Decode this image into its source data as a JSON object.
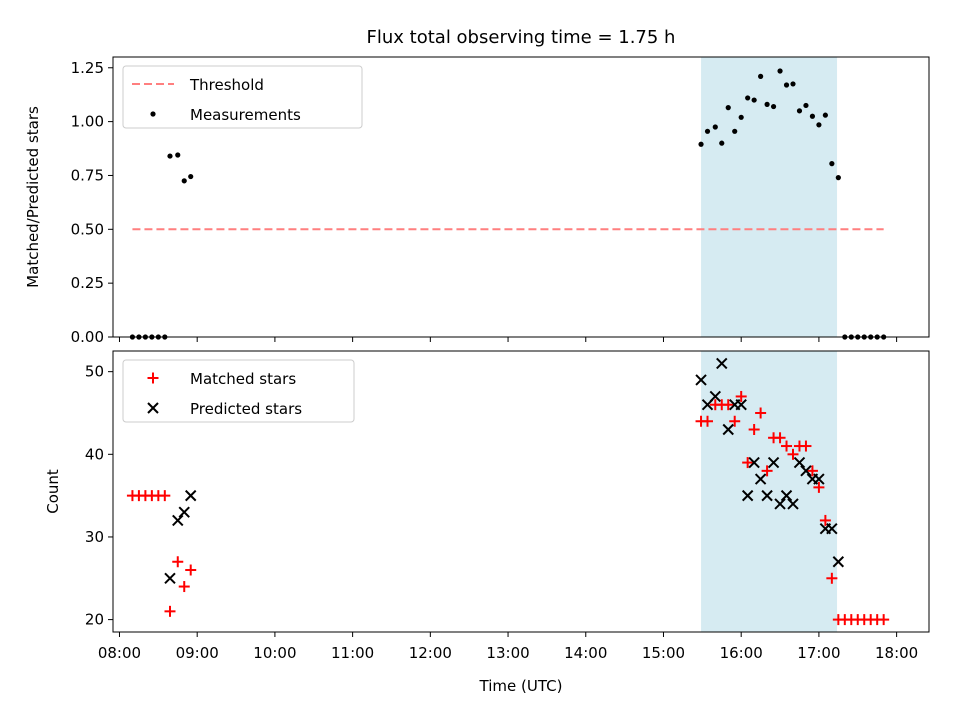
{
  "title": "Flux total observing time = 1.75 h",
  "colors": {
    "threshold": "#ff7f7f",
    "measurement": "#000000",
    "matched": "#ff0000",
    "predicted": "#000000",
    "span": "#add8e6"
  },
  "chart_data": [
    {
      "type": "scatter",
      "ylabel": "Matched/Predicted stars",
      "xlabel": "",
      "ylim": [
        0,
        1.3
      ],
      "yticks": [
        0.0,
        0.25,
        0.5,
        0.75,
        1.0,
        1.25
      ],
      "ytick_labels": [
        "0.00",
        "0.25",
        "0.50",
        "0.75",
        "1.00",
        "1.25"
      ],
      "xlim": [
        "07:55",
        "18:25"
      ],
      "highlight_span": [
        "15:29",
        "17:14"
      ],
      "legend": {
        "placement": "upper left",
        "entries": [
          "Threshold",
          "Measurements"
        ]
      },
      "threshold": {
        "name": "Threshold",
        "x": [
          "08:10",
          "17:50"
        ],
        "y": 0.5,
        "style": "dashed"
      },
      "series": [
        {
          "name": "Measurements",
          "marker": "dot",
          "points": [
            [
              "08:10",
              0.0
            ],
            [
              "08:15",
              0.0
            ],
            [
              "08:20",
              0.0
            ],
            [
              "08:25",
              0.0
            ],
            [
              "08:30",
              0.0
            ],
            [
              "08:35",
              0.0
            ],
            [
              "08:39",
              0.84
            ],
            [
              "08:45",
              0.845
            ],
            [
              "08:50",
              0.725
            ],
            [
              "08:55",
              0.745
            ],
            [
              "15:29",
              0.895
            ],
            [
              "15:34",
              0.955
            ],
            [
              "15:40",
              0.975
            ],
            [
              "15:45",
              0.9
            ],
            [
              "15:50",
              1.065
            ],
            [
              "15:55",
              0.955
            ],
            [
              "16:00",
              1.02
            ],
            [
              "16:05",
              1.11
            ],
            [
              "16:10",
              1.1
            ],
            [
              "16:15",
              1.21
            ],
            [
              "16:20",
              1.08
            ],
            [
              "16:25",
              1.07
            ],
            [
              "16:30",
              1.235
            ],
            [
              "16:35",
              1.17
            ],
            [
              "16:40",
              1.175
            ],
            [
              "16:45",
              1.05
            ],
            [
              "16:50",
              1.075
            ],
            [
              "16:55",
              1.025
            ],
            [
              "17:00",
              0.985
            ],
            [
              "17:05",
              1.03
            ],
            [
              "17:10",
              0.805
            ],
            [
              "17:15",
              0.74
            ],
            [
              "17:20",
              0.0
            ],
            [
              "17:25",
              0.0
            ],
            [
              "17:30",
              0.0
            ],
            [
              "17:35",
              0.0
            ],
            [
              "17:40",
              0.0
            ],
            [
              "17:45",
              0.0
            ],
            [
              "17:50",
              0.0
            ]
          ]
        }
      ]
    },
    {
      "type": "scatter",
      "ylabel": "Count",
      "xlabel": "Time (UTC)",
      "ylim": [
        18.5,
        52.5
      ],
      "yticks": [
        20,
        30,
        40,
        50
      ],
      "ytick_labels": [
        "20",
        "30",
        "40",
        "50"
      ],
      "xlim": [
        "07:55",
        "18:25"
      ],
      "xticks": [
        "08:00",
        "09:00",
        "10:00",
        "11:00",
        "12:00",
        "13:00",
        "14:00",
        "15:00",
        "16:00",
        "17:00",
        "18:00"
      ],
      "highlight_span": [
        "15:29",
        "17:14"
      ],
      "legend": {
        "placement": "upper left",
        "entries": [
          "Matched stars",
          "Predicted stars"
        ]
      },
      "series": [
        {
          "name": "Matched stars",
          "marker": "plus",
          "points": [
            [
              "08:10",
              35
            ],
            [
              "08:15",
              35
            ],
            [
              "08:20",
              35
            ],
            [
              "08:25",
              35
            ],
            [
              "08:30",
              35
            ],
            [
              "08:35",
              35
            ],
            [
              "08:39",
              21
            ],
            [
              "08:45",
              27
            ],
            [
              "08:50",
              24
            ],
            [
              "08:55",
              26
            ],
            [
              "15:29",
              44
            ],
            [
              "15:34",
              44
            ],
            [
              "15:40",
              46
            ],
            [
              "15:45",
              46
            ],
            [
              "15:50",
              46
            ],
            [
              "15:55",
              44
            ],
            [
              "16:00",
              47
            ],
            [
              "16:05",
              39
            ],
            [
              "16:10",
              43
            ],
            [
              "16:15",
              45
            ],
            [
              "16:20",
              38
            ],
            [
              "16:25",
              42
            ],
            [
              "16:30",
              42
            ],
            [
              "16:35",
              41
            ],
            [
              "16:40",
              40
            ],
            [
              "16:45",
              41
            ],
            [
              "16:50",
              41
            ],
            [
              "16:55",
              38
            ],
            [
              "17:00",
              36
            ],
            [
              "17:05",
              32
            ],
            [
              "17:10",
              25
            ],
            [
              "17:15",
              20
            ],
            [
              "17:20",
              20
            ],
            [
              "17:25",
              20
            ],
            [
              "17:30",
              20
            ],
            [
              "17:35",
              20
            ],
            [
              "17:40",
              20
            ],
            [
              "17:45",
              20
            ],
            [
              "17:50",
              20
            ]
          ]
        },
        {
          "name": "Predicted stars",
          "marker": "x",
          "points": [
            [
              "08:39",
              25
            ],
            [
              "08:45",
              32
            ],
            [
              "08:50",
              33
            ],
            [
              "08:55",
              35
            ],
            [
              "15:29",
              49
            ],
            [
              "15:34",
              46
            ],
            [
              "15:40",
              47
            ],
            [
              "15:45",
              51
            ],
            [
              "15:50",
              43
            ],
            [
              "15:55",
              46
            ],
            [
              "16:00",
              46
            ],
            [
              "16:05",
              35
            ],
            [
              "16:10",
              39
            ],
            [
              "16:15",
              37
            ],
            [
              "16:20",
              35
            ],
            [
              "16:25",
              39
            ],
            [
              "16:30",
              34
            ],
            [
              "16:35",
              35
            ],
            [
              "16:40",
              34
            ],
            [
              "16:45",
              39
            ],
            [
              "16:50",
              38
            ],
            [
              "16:55",
              37
            ],
            [
              "17:00",
              37
            ],
            [
              "17:05",
              31
            ],
            [
              "17:10",
              31
            ],
            [
              "17:15",
              27
            ]
          ]
        }
      ]
    }
  ]
}
